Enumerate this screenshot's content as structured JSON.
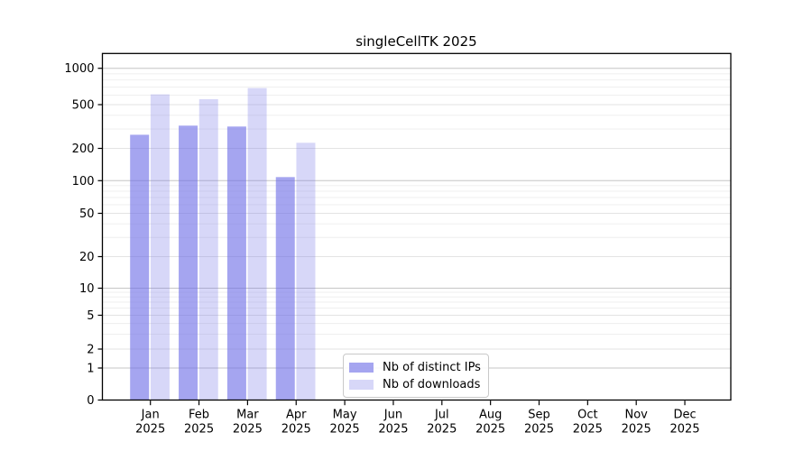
{
  "figure": {
    "background": "#ffffff",
    "axis_color": "#000000",
    "grid_decade_color": "#c6c6c6",
    "grid_mid_color": "#e3e3e3",
    "grid_minor_color": "#ededed"
  },
  "chart_data": {
    "type": "bar",
    "title": "singleCellTK 2025",
    "categories": [
      "Jan",
      "Feb",
      "Mar",
      "Apr",
      "May",
      "Jun",
      "Jul",
      "Aug",
      "Sep",
      "Oct",
      "Nov",
      "Dec"
    ],
    "category_year": "2025",
    "series": [
      {
        "name": "Nb of distinct IPs",
        "color": "rgba(110,110,230,0.62)",
        "values": [
          266,
          322,
          316,
          108,
          null,
          null,
          null,
          null,
          null,
          null,
          null,
          null
        ]
      },
      {
        "name": "Nb of downloads",
        "color": "rgba(110,110,230,0.28)",
        "values": [
          608,
          555,
          686,
          225,
          null,
          null,
          null,
          null,
          null,
          null,
          null,
          null
        ]
      }
    ],
    "yaxis": {
      "scale": "log",
      "ticks": [
        0,
        1,
        2,
        5,
        10,
        20,
        50,
        100,
        200,
        500,
        1000
      ],
      "minor_gridlines": [
        3,
        4,
        6,
        7,
        8,
        9,
        30,
        40,
        60,
        70,
        80,
        90,
        300,
        400,
        600,
        700,
        800,
        900
      ],
      "ylim": [
        0,
        1400
      ]
    },
    "xlabel": "",
    "ylabel": "",
    "grid": "horizontal, log minor + decade major",
    "legend_position": "inside bottom-center"
  }
}
